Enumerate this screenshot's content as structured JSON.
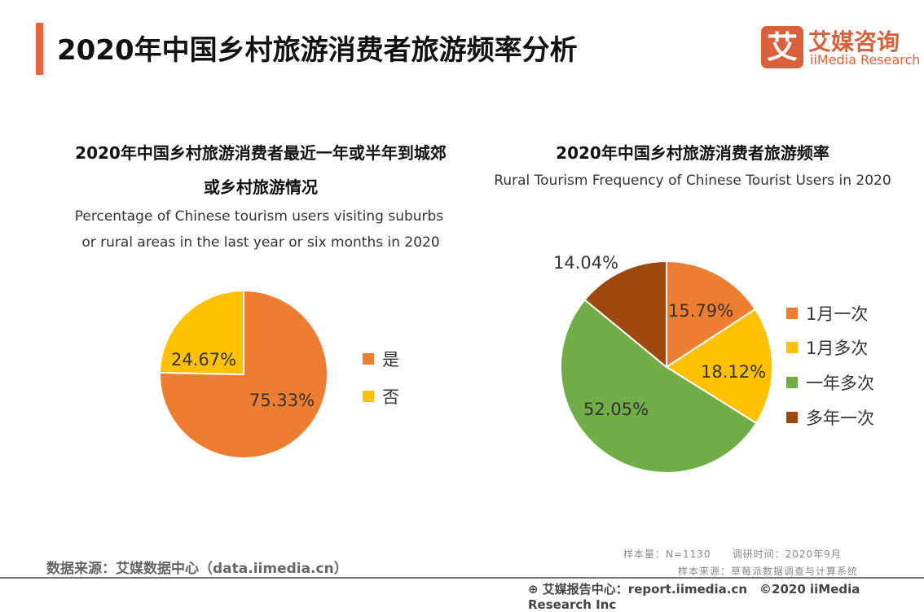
{
  "header": {
    "title": "2020年中国乡村旅游消费者旅游频率分析",
    "logo_mark": "艾",
    "logo_cn": "艾媒咨询",
    "logo_en": "iiMedia Research"
  },
  "chart_data": [
    {
      "type": "pie",
      "title": "2020年中国乡村旅游消费者最近一年或半年到城郊或乡村旅游情况",
      "title_line1": "2020年中国乡村旅游消费者最近一年或半年到城郊",
      "title_line2": "或乡村旅游情况",
      "subtitle_line1": "Percentage of Chinese tourism users visiting suburbs",
      "subtitle_line2": "or rural areas in the last year or six months in 2020",
      "categories": [
        "是",
        "否"
      ],
      "values": [
        75.33,
        24.67
      ],
      "labels": [
        "75.33%",
        "24.67%"
      ],
      "colors": [
        "#ED7D31",
        "#FFC000"
      ],
      "legend": "right"
    },
    {
      "type": "pie",
      "title": "2020年中国乡村旅游消费者旅游频率",
      "subtitle": "Rural Tourism Frequency of Chinese Tourist Users in 2020",
      "categories": [
        "1月一次",
        "1月多次",
        "一年多次",
        "多年一次"
      ],
      "values": [
        15.79,
        18.12,
        52.05,
        14.04
      ],
      "labels": [
        "15.79%",
        "18.12%",
        "52.05%",
        "14.04%"
      ],
      "colors": [
        "#ED7D31",
        "#FFC000",
        "#70AD47",
        "#9E480E"
      ],
      "legend": "right"
    }
  ],
  "notes": {
    "sample": "样本量：N=1130　　调研时间：2020年9月",
    "sample_source": "样本来源：草莓派数据调查与计算系统"
  },
  "source": "数据来源：艾媒数据中心（data.iimedia.cn）",
  "footer": "艾媒报告中心：report.iimedia.cn　©2020  iiMedia Research  Inc"
}
